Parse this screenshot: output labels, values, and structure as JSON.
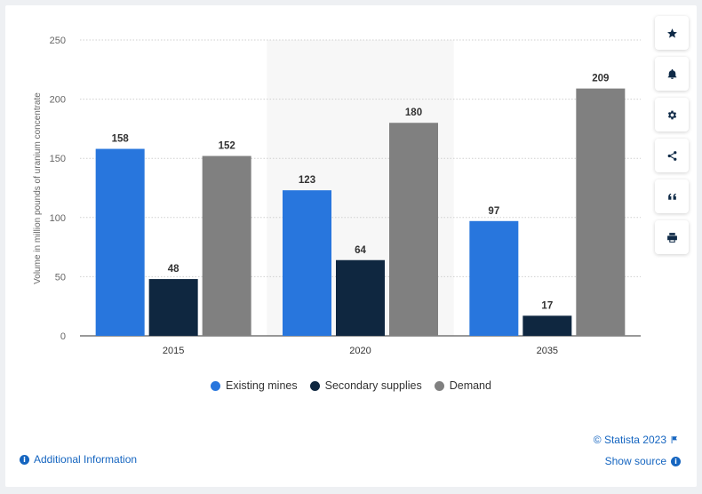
{
  "chart_data": {
    "type": "bar",
    "categories": [
      "2015",
      "2020",
      "2035"
    ],
    "series": [
      {
        "name": "Existing mines",
        "values": [
          158,
          123,
          97
        ],
        "color": "#2876dd"
      },
      {
        "name": "Secondary supplies",
        "values": [
          48,
          64,
          17
        ],
        "color": "#0f2740"
      },
      {
        "name": "Demand",
        "values": [
          152,
          180,
          209
        ],
        "color": "#808080"
      }
    ],
    "ylabel": "Volume in million pounds of uranium concentrate",
    "xlabel": "",
    "ylim": [
      0,
      250
    ],
    "yticks": [
      0,
      50,
      100,
      150,
      200,
      250
    ],
    "highlighted_category": "2020",
    "grid": "horizontal dotted",
    "legend_position": "bottom-center"
  },
  "tools": [
    {
      "name": "star-icon"
    },
    {
      "name": "bell-icon"
    },
    {
      "name": "gear-icon"
    },
    {
      "name": "share-icon"
    },
    {
      "name": "quote-icon"
    },
    {
      "name": "print-icon"
    }
  ],
  "footer": {
    "credit": "© Statista 2023",
    "show_source": "Show source",
    "additional_info": "Additional Information"
  }
}
